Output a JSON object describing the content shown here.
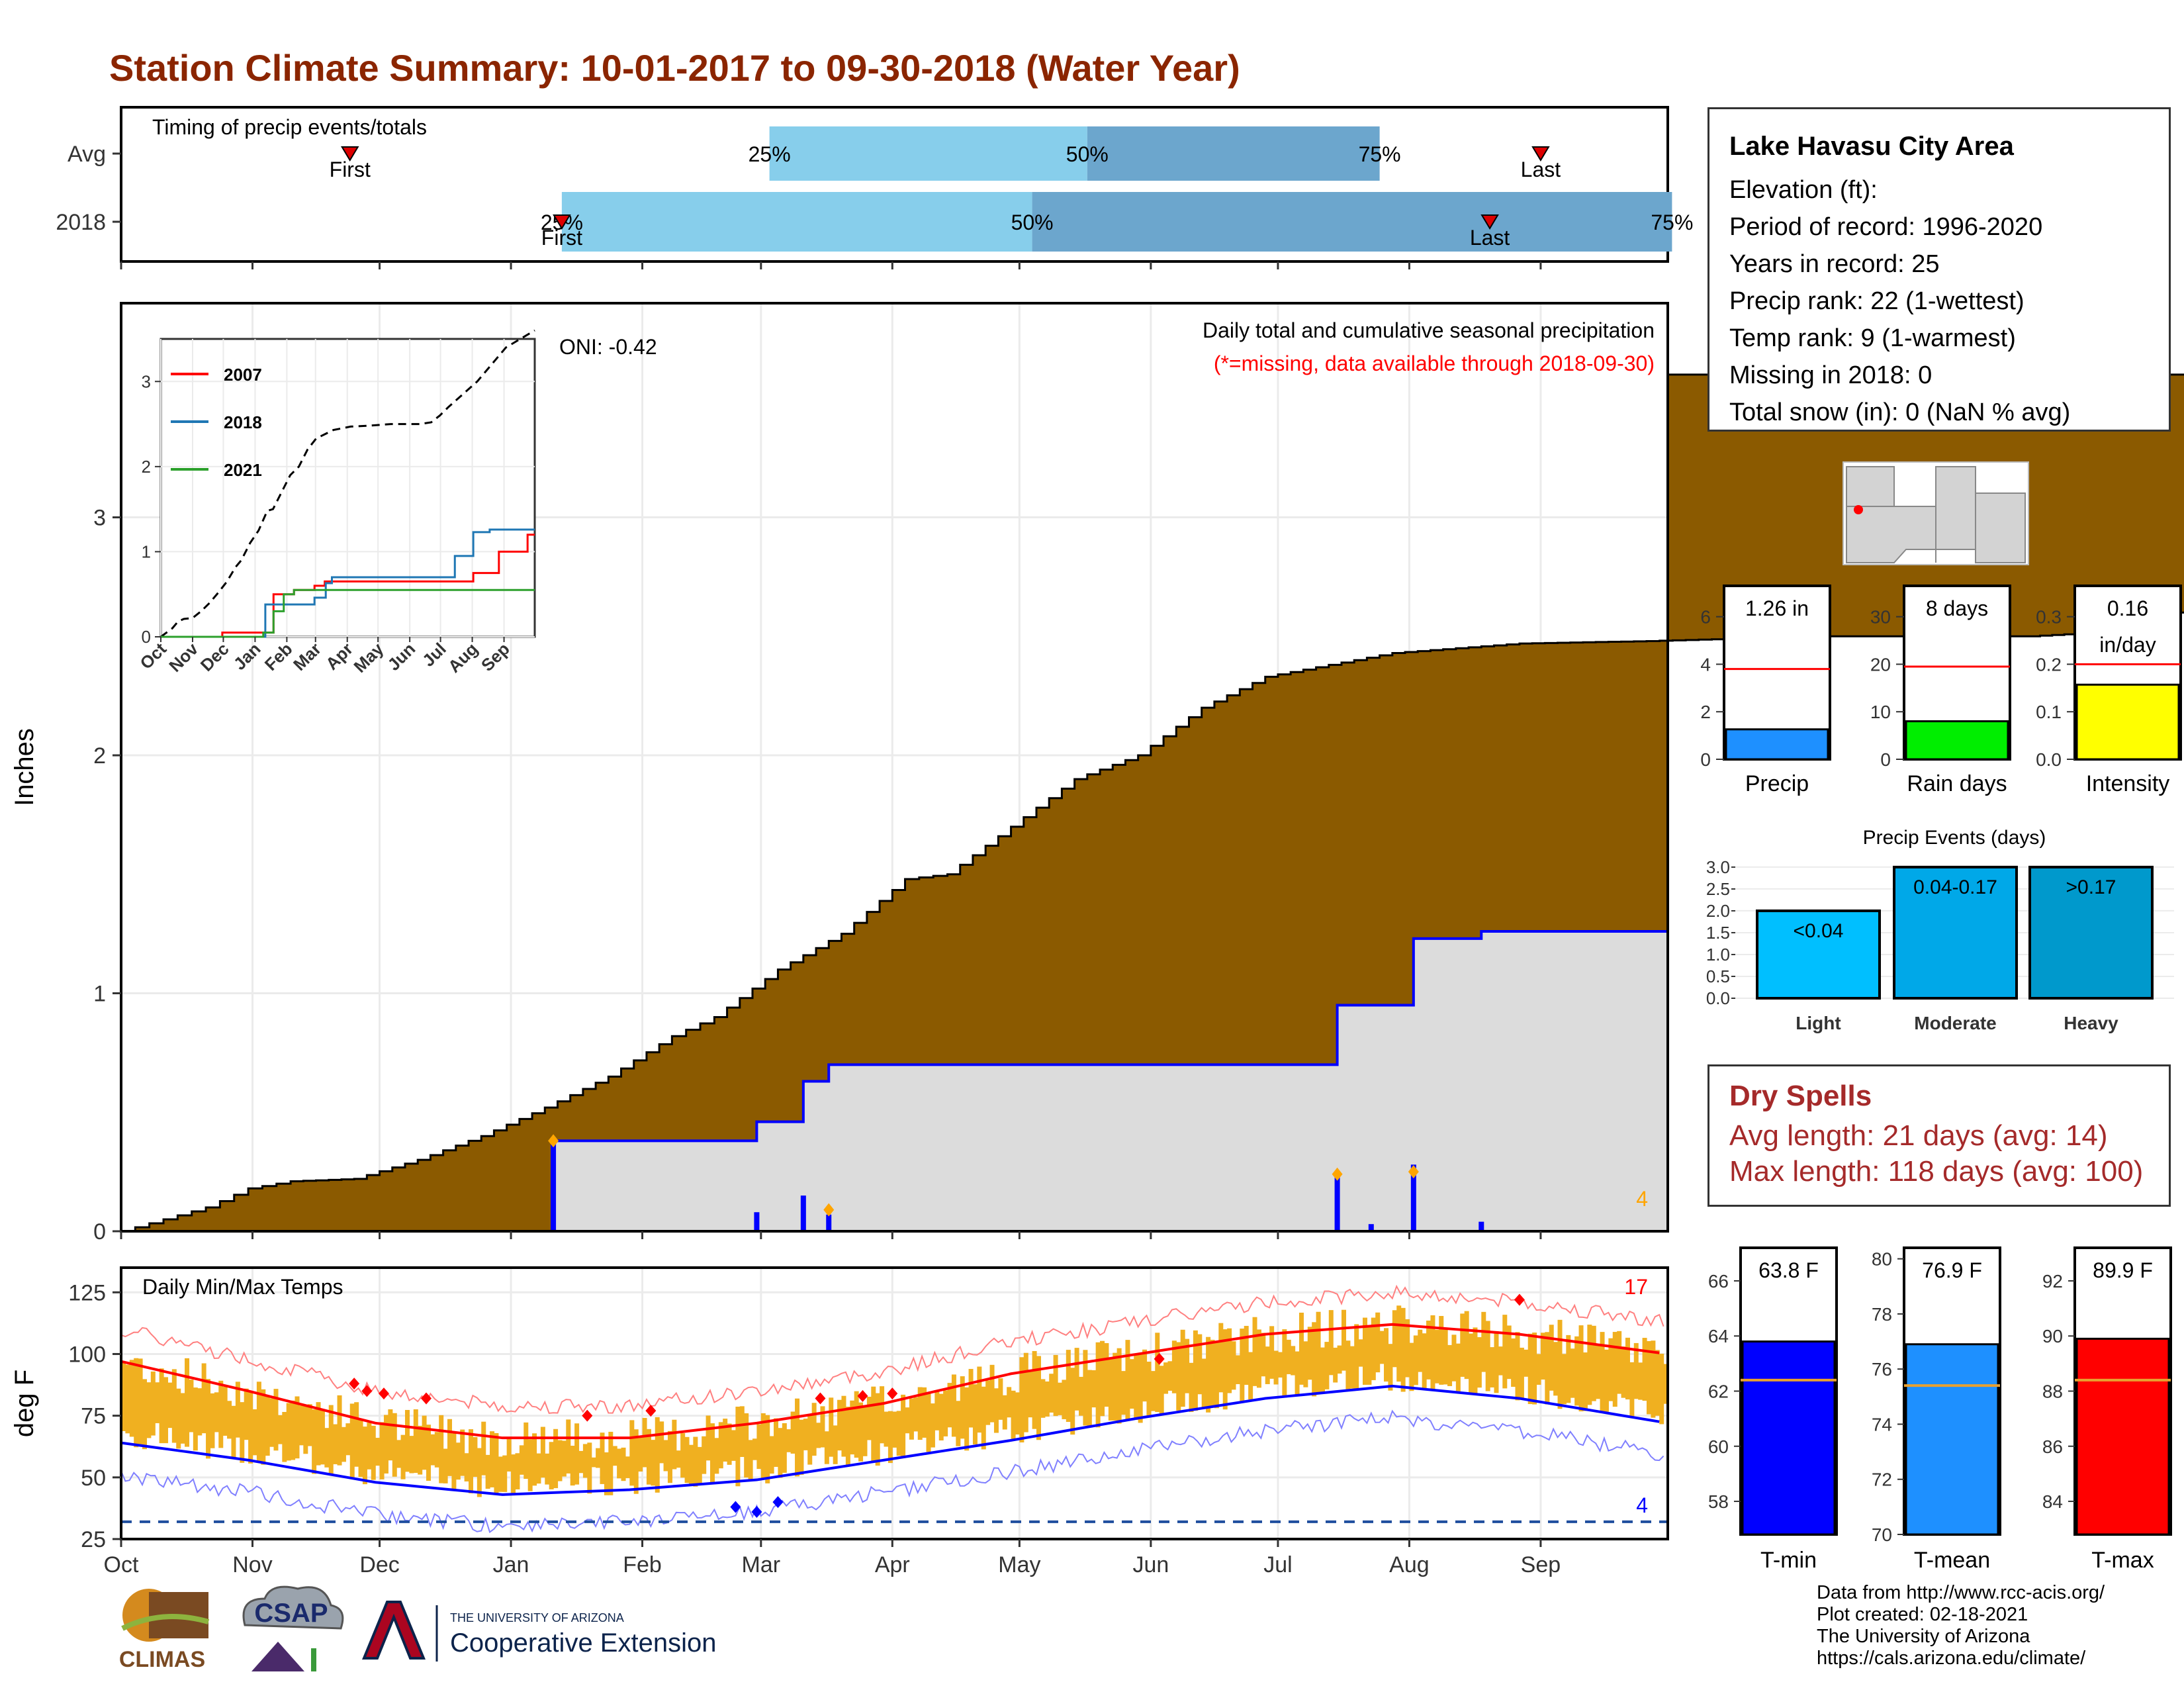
{
  "title": "Station Climate Summary: 10-01-2017 to 09-30-2018 (Water Year)",
  "timing": {
    "label": "Timing of precip events/totals",
    "rows": [
      {
        "name": "Avg",
        "first": "First",
        "last": "Last",
        "p25": "25%",
        "p50": "50%",
        "p75": "75%"
      },
      {
        "name": "2018",
        "first": "First",
        "last": "Last",
        "p25": "25%",
        "p50": "50%",
        "p75": "75%"
      }
    ]
  },
  "main_chart": {
    "ylabel": "Inches",
    "oni": "ONI: -0.42",
    "caption": "Daily total and cumulative seasonal precipitation",
    "missing_note": "(*=missing, data available through 2018-09-30)",
    "missing_count": "4",
    "yticks": [
      "0",
      "1",
      "2",
      "3"
    ]
  },
  "inset": {
    "legend": [
      "2007",
      "2018",
      "2021"
    ],
    "yticks": [
      "0",
      "1",
      "2",
      "3"
    ],
    "xticks": [
      "Oct",
      "Nov",
      "Dec",
      "Jan",
      "Feb",
      "Mar",
      "Apr",
      "May",
      "Jun",
      "Jul",
      "Aug",
      "Sep"
    ]
  },
  "temps": {
    "label": "Daily Min/Max Temps",
    "ylabel": "deg F",
    "count_top": "17",
    "count_bottom": "4",
    "yticks": [
      "25",
      "50",
      "75",
      "100",
      "125"
    ]
  },
  "months": [
    "Oct",
    "Nov",
    "Dec",
    "Jan",
    "Feb",
    "Mar",
    "Apr",
    "May",
    "Jun",
    "Jul",
    "Aug",
    "Sep"
  ],
  "station": {
    "name": "Lake Havasu City Area",
    "lines": [
      "Elevation (ft):",
      "Period of record: 1996-2020",
      "Years in record: 25",
      "Precip rank: 22 (1-wettest)",
      "Temp rank: 9 (1-warmest)",
      "Missing in 2018: 0",
      "Total snow (in): 0 (NaN % avg)"
    ]
  },
  "mini_bars": [
    {
      "value_label": "1.26 in",
      "xlabel": "Precip",
      "value": 1.26,
      "avg": 3.8,
      "ymax": 7.3,
      "ticks": [
        "0",
        "2",
        "4",
        "6"
      ],
      "tickvals": [
        0,
        2,
        4,
        6
      ],
      "color": "#1E90FF"
    },
    {
      "value_label": "8 days",
      "xlabel": "Rain days",
      "value": 8,
      "avg": 19.5,
      "ymax": 36.5,
      "ticks": [
        "0",
        "10",
        "20",
        "30"
      ],
      "tickvals": [
        0,
        10,
        20,
        30
      ],
      "color": "#00EE00"
    },
    {
      "value_label": "0.16",
      "value_label2": "in/day",
      "xlabel": "Intensity",
      "value": 0.157,
      "avg": 0.2,
      "ymax": 0.365,
      "ticks": [
        "0.0",
        "0.1",
        "0.2",
        "0.3"
      ],
      "tickvals": [
        0,
        0.1,
        0.2,
        0.3
      ],
      "color": "#FFFF00"
    }
  ],
  "precip_events": {
    "title": "Precip Events (days)",
    "yticks": [
      "0.0",
      "0.5",
      "1.0",
      "1.5",
      "2.0",
      "2.5",
      "3.0"
    ],
    "bars": [
      {
        "label": "<0.04",
        "xlabel": "Light",
        "value": 2,
        "color": "#00BFFF"
      },
      {
        "label": "0.04-0.17",
        "xlabel": "Moderate",
        "value": 3,
        "color": "#00A8E8"
      },
      {
        "label": ">0.17",
        "xlabel": "Heavy",
        "value": 3,
        "color": "#0099CC"
      }
    ]
  },
  "dry_spells": {
    "title": "Dry Spells",
    "avg_length": "Avg length: 21 days (avg: 14)",
    "max_length": "Max length: 118 days (avg: 100)"
  },
  "temp_bars": [
    {
      "value_label": "63.8 F",
      "xlabel": "T-min",
      "value": 63.8,
      "avg": 62.4,
      "ymin": 56.8,
      "ymax": 67.2,
      "ticks": [
        "58",
        "60",
        "62",
        "64",
        "66"
      ],
      "tickvals": [
        58,
        60,
        62,
        64,
        66
      ],
      "color": "#0000FF"
    },
    {
      "value_label": "76.9 F",
      "xlabel": "T-mean",
      "value": 76.9,
      "avg": 75.4,
      "ymin": 70,
      "ymax": 80.4,
      "ticks": [
        "70",
        "72",
        "74",
        "76",
        "78",
        "80"
      ],
      "tickvals": [
        70,
        72,
        74,
        76,
        78,
        80
      ],
      "color": "#1E90FF"
    },
    {
      "value_label": "89.9 F",
      "xlabel": "T-max",
      "value": 89.9,
      "avg": 88.4,
      "ymin": 82.8,
      "ymax": 93.2,
      "ticks": [
        "84",
        "86",
        "88",
        "90",
        "92"
      ],
      "tickvals": [
        84,
        86,
        88,
        90,
        92
      ],
      "color": "#FF0000"
    }
  ],
  "credits": [
    "Data from http://www.rcc-acis.org/",
    "Plot created: 02-18-2021",
    "The University of Arizona",
    "https://cals.arizona.edu/climate/"
  ],
  "logos": {
    "climas": "CLIMAS",
    "csap": "CSAP",
    "ua_small": "THE UNIVERSITY OF ARIZONA",
    "ua_big": "Cooperative Extension"
  },
  "chart_data": [
    {
      "type": "area",
      "title": "Daily total and cumulative seasonal precipitation",
      "ylabel": "Inches",
      "ylim": [
        0,
        3.9
      ],
      "xlim": [
        "2017-10-01",
        "2018-09-30"
      ],
      "series": [
        {
          "values": [
            [
              0,
              0
            ],
            [
              10,
              0.05
            ],
            [
              20,
              0.1
            ],
            [
              30,
              0.18
            ],
            [
              40,
              0.21
            ],
            [
              55,
              0.22
            ],
            [
              70,
              0.3
            ],
            [
              85,
              0.4
            ],
            [
              100,
              0.52
            ],
            [
              115,
              0.65
            ],
            [
              130,
              0.82
            ],
            [
              140,
              0.9
            ],
            [
              155,
              1.1
            ],
            [
              170,
              1.25
            ],
            [
              185,
              1.48
            ],
            [
              195,
              1.5
            ],
            [
              210,
              1.7
            ],
            [
              225,
              1.9
            ],
            [
              240,
              2.0
            ],
            [
              255,
              2.2
            ],
            [
              270,
              2.33
            ],
            [
              285,
              2.38
            ],
            [
              300,
              2.43
            ],
            [
              330,
              2.47
            ],
            [
              360,
              2.48
            ],
            [
              400,
              2.5
            ],
            [
              450,
              2.5
            ],
            [
              470,
              2.52
            ],
            [
              485,
              2.6
            ],
            [
              500,
              2.7
            ],
            [
              525,
              2.85
            ],
            [
              550,
              3.0
            ],
            [
              575,
              3.2
            ],
            [
              600,
              3.4
            ],
            [
              625,
              3.5
            ],
            [
              650,
              3.6
            ]
          ]
        },
        {
          "name": "2018",
          "values": [
            [
              0,
              0
            ],
            [
              102,
              0
            ],
            [
              102,
              0.38
            ],
            [
              150,
              0.38
            ],
            [
              150,
              0.46
            ],
            [
              161,
              0.46
            ],
            [
              161,
              0.63
            ],
            [
              167,
              0.63
            ],
            [
              167,
              0.7
            ],
            [
              287,
              0.7
            ],
            [
              287,
              0.95
            ],
            [
              305,
              0.95
            ],
            [
              305,
              1.23
            ],
            [
              321,
              1.23
            ],
            [
              321,
              1.26
            ],
            [
              365,
              1.26
            ]
          ]
        }
      ],
      "daily_bars": [
        [
          102,
          0.38
        ],
        [
          150,
          0.08
        ],
        [
          161,
          0.15
        ],
        [
          167,
          0.07
        ],
        [
          287,
          0.25
        ],
        [
          295,
          0.03
        ],
        [
          305,
          0.28
        ],
        [
          321,
          0.04
        ]
      ],
      "missing_markers": [
        [
          102,
          0.38
        ],
        [
          167,
          0.09
        ],
        [
          287,
          0.24
        ],
        [
          305,
          0.25
        ]
      ]
    },
    {
      "type": "line",
      "title": "Inset cumulative precipitation",
      "ylim": [
        0,
        3.5
      ],
      "series": [
        {
          "name": "2007",
          "values": [
            [
              0,
              0
            ],
            [
              60,
              0.05
            ],
            [
              100,
              0.05
            ],
            [
              110,
              0.5
            ],
            [
              130,
              0.55
            ],
            [
              150,
              0.6
            ],
            [
              160,
              0.65
            ],
            [
              300,
              0.65
            ],
            [
              305,
              0.75
            ],
            [
              320,
              0.75
            ],
            [
              330,
              1.0
            ],
            [
              355,
              1.0
            ],
            [
              358,
              1.2
            ],
            [
              365,
              1.2
            ]
          ]
        },
        {
          "name": "2018",
          "values": [
            [
              0,
              0
            ],
            [
              102,
              0
            ],
            [
              102,
              0.38
            ],
            [
              150,
              0.46
            ],
            [
              161,
              0.63
            ],
            [
              167,
              0.7
            ],
            [
              287,
              0.95
            ],
            [
              305,
              1.23
            ],
            [
              321,
              1.26
            ],
            [
              365,
              1.26
            ]
          ]
        },
        {
          "name": "2021",
          "values": [
            [
              0,
              0
            ],
            [
              100,
              0.05
            ],
            [
              110,
              0.3
            ],
            [
              120,
              0.5
            ],
            [
              130,
              0.55
            ],
            [
              150,
              0.55
            ],
            [
              365,
              0.55
            ]
          ]
        }
      ]
    },
    {
      "type": "line",
      "title": "Daily Min/Max Temps",
      "ylabel": "deg F",
      "ylim": [
        25,
        135
      ],
      "series": [
        {
          "name": "avg max",
          "values": [
            [
              0,
              97
            ],
            [
              30,
              85
            ],
            [
              60,
              72
            ],
            [
              90,
              66
            ],
            [
              120,
              66
            ],
            [
              150,
              72
            ],
            [
              180,
              80
            ],
            [
              210,
              92
            ],
            [
              240,
              100
            ],
            [
              270,
              108
            ],
            [
              300,
              112
            ],
            [
              330,
              108
            ],
            [
              365,
              100
            ]
          ]
        },
        {
          "name": "avg min",
          "values": [
            [
              0,
              64
            ],
            [
              30,
              57
            ],
            [
              60,
              48
            ],
            [
              90,
              43
            ],
            [
              120,
              45
            ],
            [
              150,
              49
            ],
            [
              180,
              57
            ],
            [
              210,
              65
            ],
            [
              240,
              74
            ],
            [
              270,
              82
            ],
            [
              300,
              87
            ],
            [
              330,
              82
            ],
            [
              365,
              72
            ]
          ]
        }
      ],
      "freeze_line": 32
    }
  ]
}
